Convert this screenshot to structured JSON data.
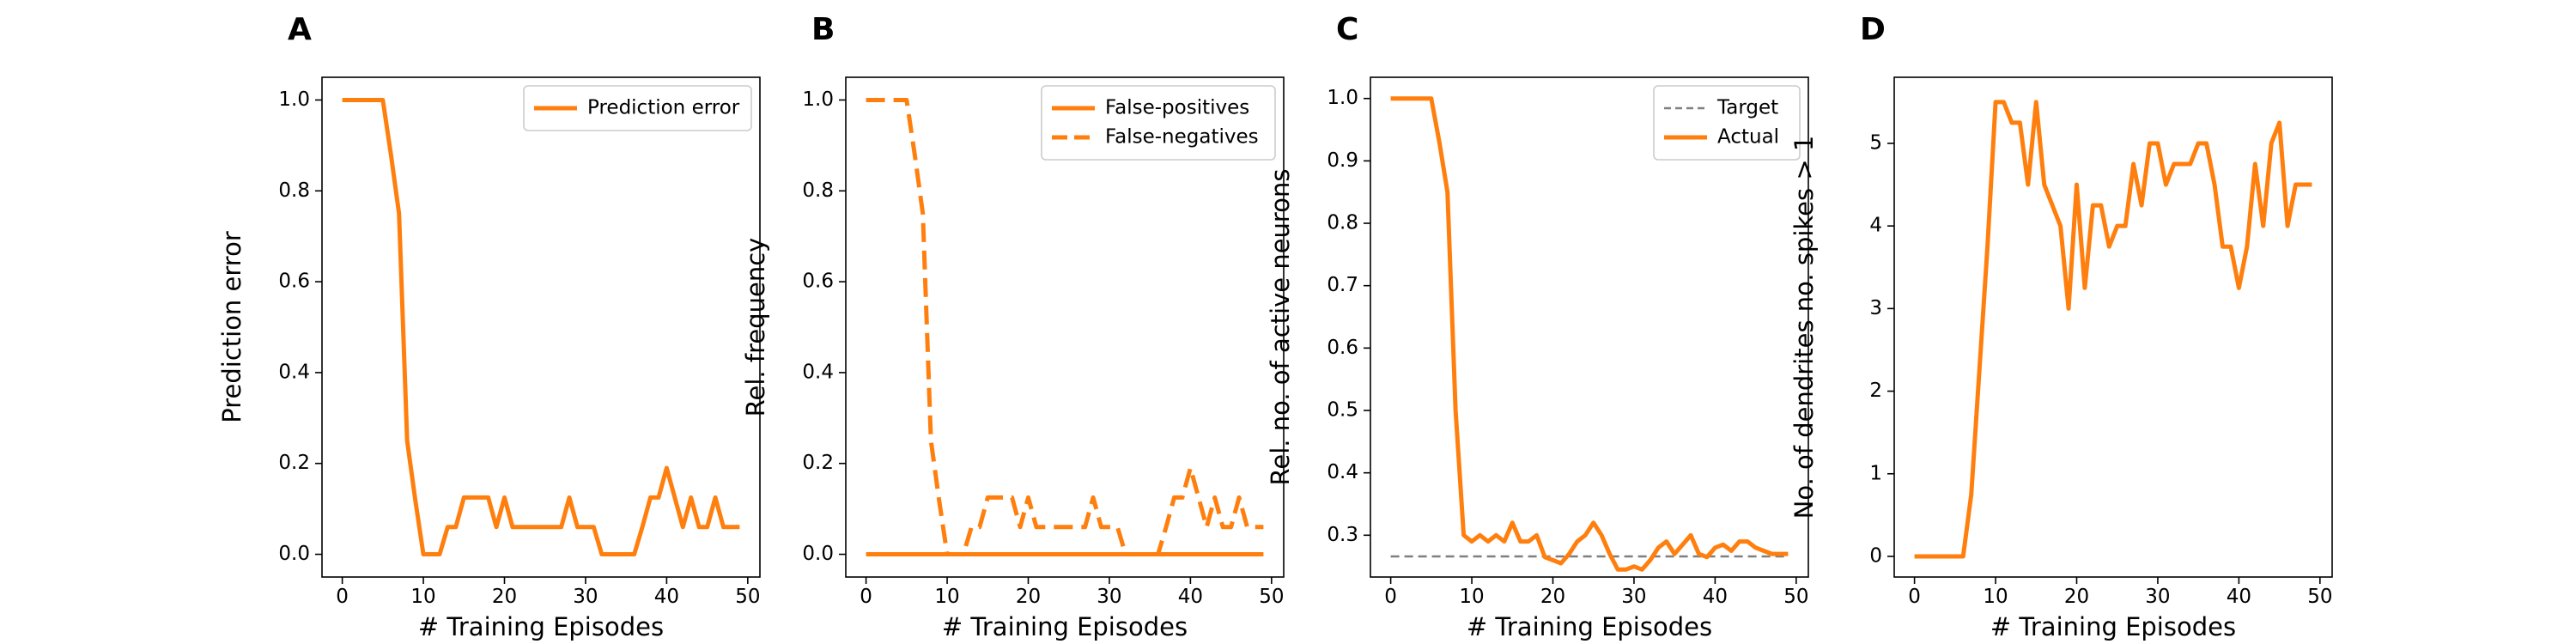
{
  "colors": {
    "orange": "#ff7f0e",
    "target": "#7f7f7f"
  },
  "chart_data": [
    {
      "type": "line",
      "panel": "A",
      "xlabel": "# Training Episodes",
      "ylabel": "Prediction error",
      "xlim": [
        -2.5,
        51.5
      ],
      "ylim": [
        -0.05,
        1.05
      ],
      "xticks": [
        0,
        10,
        20,
        30,
        40,
        50
      ],
      "yticks": [
        0.0,
        0.2,
        0.4,
        0.6,
        0.8,
        1.0
      ],
      "ytick_decimals": 1,
      "legend": "top-right",
      "series": [
        {
          "name": "Prediction error",
          "style": "solid",
          "color": "#ff7f0e",
          "x": [
            0,
            1,
            2,
            3,
            4,
            5,
            6,
            7,
            8,
            9,
            10,
            11,
            12,
            13,
            14,
            15,
            16,
            17,
            18,
            19,
            20,
            21,
            22,
            23,
            24,
            25,
            26,
            27,
            28,
            29,
            30,
            31,
            32,
            33,
            34,
            35,
            36,
            37,
            38,
            39,
            40,
            41,
            42,
            43,
            44,
            45,
            46,
            47,
            48,
            49
          ],
          "y": [
            1.0,
            1.0,
            1.0,
            1.0,
            1.0,
            1.0,
            0.88,
            0.75,
            0.25,
            0.12,
            0.0,
            0.0,
            0.0,
            0.06,
            0.06,
            0.125,
            0.125,
            0.125,
            0.125,
            0.06,
            0.125,
            0.06,
            0.06,
            0.06,
            0.06,
            0.06,
            0.06,
            0.06,
            0.125,
            0.06,
            0.06,
            0.06,
            0.0,
            0.0,
            0.0,
            0.0,
            0.0,
            0.06,
            0.125,
            0.125,
            0.19,
            0.125,
            0.06,
            0.125,
            0.06,
            0.06,
            0.125,
            0.06,
            0.06,
            0.06
          ]
        }
      ]
    },
    {
      "type": "line",
      "panel": "B",
      "xlabel": "# Training Episodes",
      "ylabel": "Rel. frequency",
      "xlim": [
        -2.5,
        51.5
      ],
      "ylim": [
        -0.05,
        1.05
      ],
      "xticks": [
        0,
        10,
        20,
        30,
        40,
        50
      ],
      "yticks": [
        0.0,
        0.2,
        0.4,
        0.6,
        0.8,
        1.0
      ],
      "ytick_decimals": 1,
      "legend": "top-right",
      "series": [
        {
          "name": "False-positives",
          "style": "solid",
          "color": "#ff7f0e",
          "x": [
            0,
            49
          ],
          "y": [
            0.0,
            0.0
          ]
        },
        {
          "name": "False-negatives",
          "style": "dashed",
          "color": "#ff7f0e",
          "x": [
            0,
            1,
            2,
            3,
            4,
            5,
            6,
            7,
            8,
            9,
            10,
            11,
            12,
            13,
            14,
            15,
            16,
            17,
            18,
            19,
            20,
            21,
            22,
            23,
            24,
            25,
            26,
            27,
            28,
            29,
            30,
            31,
            32,
            33,
            34,
            35,
            36,
            37,
            38,
            39,
            40,
            41,
            42,
            43,
            44,
            45,
            46,
            47,
            48,
            49
          ],
          "y": [
            1.0,
            1.0,
            1.0,
            1.0,
            1.0,
            1.0,
            0.88,
            0.75,
            0.25,
            0.12,
            0.0,
            0.0,
            0.0,
            0.06,
            0.06,
            0.125,
            0.125,
            0.125,
            0.125,
            0.06,
            0.125,
            0.06,
            0.06,
            0.06,
            0.06,
            0.06,
            0.06,
            0.06,
            0.125,
            0.06,
            0.06,
            0.06,
            0.0,
            0.0,
            0.0,
            0.0,
            0.0,
            0.06,
            0.125,
            0.125,
            0.19,
            0.125,
            0.06,
            0.125,
            0.06,
            0.06,
            0.125,
            0.06,
            0.06,
            0.06
          ]
        }
      ]
    },
    {
      "type": "line",
      "panel": "C",
      "xlabel": "# Training Episodes",
      "ylabel": "Rel. no. of active neurons",
      "xlim": [
        -2.5,
        51.5
      ],
      "ylim": [
        0.233,
        1.034
      ],
      "xticks": [
        0,
        10,
        20,
        30,
        40,
        50
      ],
      "yticks": [
        0.3,
        0.4,
        0.5,
        0.6,
        0.7,
        0.8,
        0.9,
        1.0
      ],
      "ytick_decimals": 1,
      "legend": "top-right",
      "series": [
        {
          "name": "Target",
          "style": "dashed-thin",
          "color": "#7f7f7f",
          "x": [
            0,
            49
          ],
          "y": [
            0.266,
            0.266
          ]
        },
        {
          "name": "Actual",
          "style": "solid",
          "color": "#ff7f0e",
          "x": [
            0,
            1,
            2,
            3,
            4,
            5,
            6,
            7,
            8,
            9,
            10,
            11,
            12,
            13,
            14,
            15,
            16,
            17,
            18,
            19,
            20,
            21,
            22,
            23,
            24,
            25,
            26,
            27,
            28,
            29,
            30,
            31,
            32,
            33,
            34,
            35,
            36,
            37,
            38,
            39,
            40,
            41,
            42,
            43,
            44,
            45,
            46,
            47,
            48,
            49
          ],
          "y": [
            1.0,
            1.0,
            1.0,
            1.0,
            1.0,
            1.0,
            0.93,
            0.85,
            0.5,
            0.3,
            0.29,
            0.3,
            0.29,
            0.3,
            0.29,
            0.32,
            0.29,
            0.29,
            0.3,
            0.265,
            0.26,
            0.255,
            0.27,
            0.29,
            0.3,
            0.32,
            0.3,
            0.27,
            0.245,
            0.245,
            0.25,
            0.245,
            0.26,
            0.28,
            0.29,
            0.27,
            0.285,
            0.3,
            0.27,
            0.265,
            0.28,
            0.285,
            0.275,
            0.29,
            0.29,
            0.28,
            0.275,
            0.27,
            0.27,
            0.27
          ]
        }
      ]
    },
    {
      "type": "line",
      "panel": "D",
      "xlabel": "# Training Episodes",
      "ylabel": "No. of dendrites no. spikes > 1",
      "xlim": [
        -2.5,
        51.5
      ],
      "ylim": [
        -0.25,
        5.8
      ],
      "xticks": [
        0,
        10,
        20,
        30,
        40,
        50
      ],
      "yticks": [
        0,
        1,
        2,
        3,
        4,
        5
      ],
      "ytick_decimals": 0,
      "legend": "none",
      "series": [
        {
          "name": "",
          "style": "solid",
          "color": "#ff7f0e",
          "x": [
            0,
            1,
            2,
            3,
            4,
            5,
            6,
            7,
            8,
            9,
            10,
            11,
            12,
            13,
            14,
            15,
            16,
            17,
            18,
            19,
            20,
            21,
            22,
            23,
            24,
            25,
            26,
            27,
            28,
            29,
            30,
            31,
            32,
            33,
            34,
            35,
            36,
            37,
            38,
            39,
            40,
            41,
            42,
            43,
            44,
            45,
            46,
            47,
            48,
            49
          ],
          "y": [
            0,
            0,
            0,
            0,
            0,
            0,
            0,
            0.75,
            2.25,
            3.75,
            5.5,
            5.5,
            5.25,
            5.25,
            4.5,
            5.5,
            4.5,
            4.25,
            4.0,
            3.0,
            4.5,
            3.25,
            4.25,
            4.25,
            3.75,
            4.0,
            4.0,
            4.75,
            4.25,
            5.0,
            5.0,
            4.5,
            4.75,
            4.75,
            4.75,
            5.0,
            5.0,
            4.5,
            3.75,
            3.75,
            3.25,
            3.75,
            4.75,
            4.0,
            5.0,
            5.25,
            4.0,
            4.5,
            4.5,
            4.5
          ]
        }
      ]
    }
  ]
}
